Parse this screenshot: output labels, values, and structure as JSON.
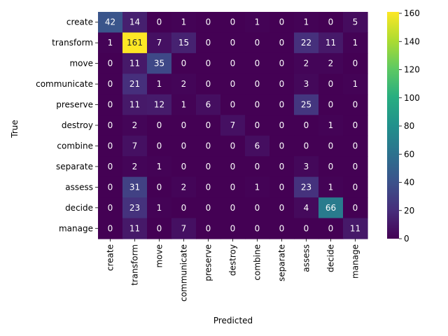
{
  "chart_data": {
    "type": "heatmap",
    "title": "",
    "xlabel": "Predicted",
    "ylabel": "True",
    "x_categories": [
      "create",
      "transform",
      "move",
      "communicate",
      "preserve",
      "destroy",
      "combine",
      "separate",
      "assess",
      "decide",
      "manage"
    ],
    "y_categories": [
      "create",
      "transform",
      "move",
      "communicate",
      "preserve",
      "destroy",
      "combine",
      "separate",
      "assess",
      "decide",
      "manage"
    ],
    "values": [
      [
        42,
        14,
        0,
        1,
        0,
        0,
        1,
        0,
        1,
        0,
        5
      ],
      [
        1,
        161,
        7,
        15,
        0,
        0,
        0,
        0,
        22,
        11,
        1
      ],
      [
        0,
        11,
        35,
        0,
        0,
        0,
        0,
        0,
        2,
        2,
        0
      ],
      [
        0,
        21,
        1,
        2,
        0,
        0,
        0,
        0,
        3,
        0,
        1
      ],
      [
        0,
        11,
        12,
        1,
        6,
        0,
        0,
        0,
        25,
        0,
        0
      ],
      [
        0,
        2,
        0,
        0,
        0,
        7,
        0,
        0,
        0,
        1,
        0
      ],
      [
        0,
        7,
        0,
        0,
        0,
        0,
        6,
        0,
        0,
        0,
        0
      ],
      [
        0,
        2,
        1,
        0,
        0,
        0,
        0,
        0,
        3,
        0,
        0
      ],
      [
        0,
        31,
        0,
        2,
        0,
        0,
        1,
        0,
        23,
        1,
        0
      ],
      [
        0,
        23,
        1,
        0,
        0,
        0,
        0,
        0,
        4,
        66,
        0
      ],
      [
        0,
        11,
        0,
        7,
        0,
        0,
        0,
        0,
        0,
        0,
        11
      ]
    ],
    "colormap": "viridis",
    "vmin": 0,
    "vmax": 161,
    "colorbar_ticks": [
      0,
      20,
      40,
      60,
      80,
      100,
      120,
      140,
      160
    ],
    "annotations": true,
    "grid": false,
    "legend": "colorbar-right"
  }
}
